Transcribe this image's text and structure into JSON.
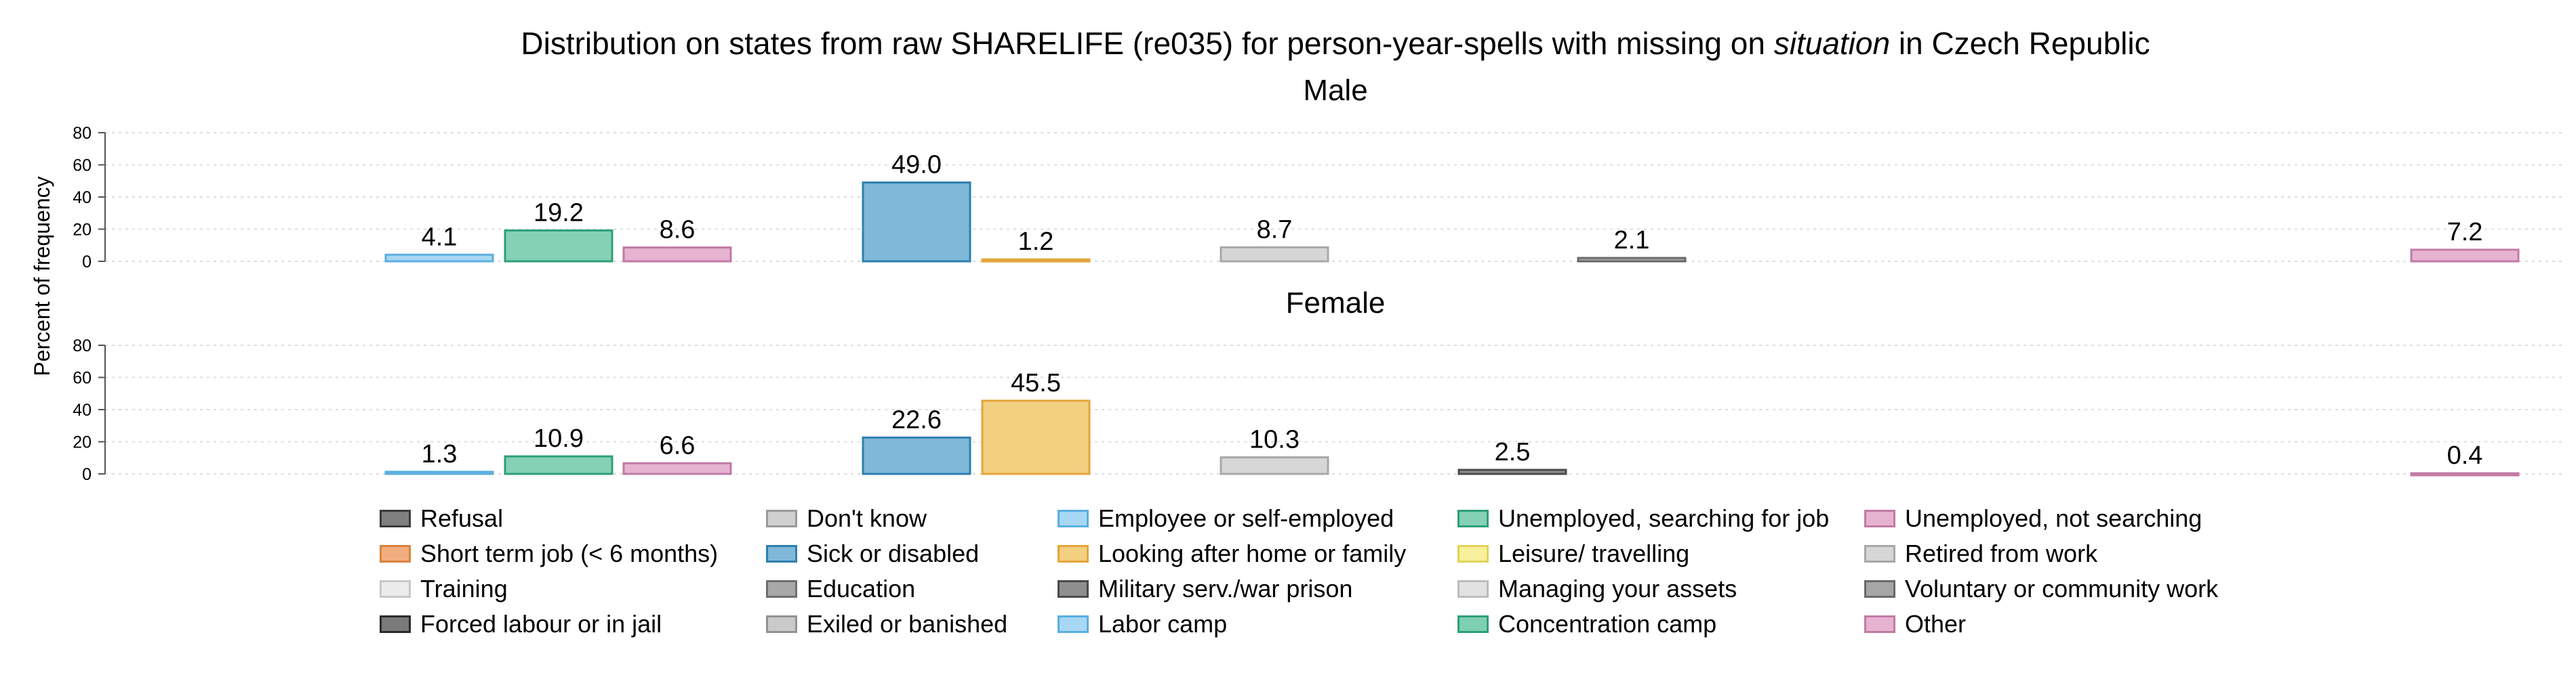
{
  "chart_data": {
    "type": "bar",
    "title": "Distribution on states from raw SHARELIFE (re035) for person-year-spells with missing on ",
    "title_italic": "situation",
    "title_suffix": " in Czech Republic",
    "ylabel": "Percent of frequency",
    "ylim": [
      0,
      80
    ],
    "yticks": [
      "0",
      "20",
      "40",
      "60",
      "80"
    ],
    "grid": true,
    "legend_position": "bottom",
    "categories": [
      "Refusal",
      "Short term job (< 6 months)",
      "Training",
      "Forced labour or in jail",
      "Don't know",
      "Sick or disabled",
      "Education",
      "Exiled or banished",
      "Employee or self-employed",
      "Looking after home or family",
      "Military serv./war prison",
      "Labor camp",
      "Unemployed, searching for job",
      "Leisure/ travelling",
      "Managing your assets",
      "Concentration camp",
      "Unemployed, not searching",
      "Retired from work",
      "Voluntary or community work",
      "Other"
    ],
    "panels": [
      {
        "name": "Male",
        "bars": [
          {
            "category": "Employee or self-employed",
            "value": 4.1,
            "label": "4.1"
          },
          {
            "category": "Unemployed, searching for job",
            "value": 19.2,
            "label": "19.2"
          },
          {
            "category": "Unemployed, not searching",
            "value": 8.6,
            "label": "8.6"
          },
          {
            "category": "Sick or disabled",
            "value": 49.0,
            "label": "49.0"
          },
          {
            "category": "Looking after home or family",
            "value": 1.2,
            "label": "1.2"
          },
          {
            "category": "Retired from work",
            "value": 8.7,
            "label": "8.7"
          },
          {
            "category": "Voluntary or community work",
            "value": 2.1,
            "label": "2.1"
          },
          {
            "category": "Other",
            "value": 7.2,
            "label": "7.2"
          }
        ]
      },
      {
        "name": "Female",
        "bars": [
          {
            "category": "Employee or self-employed",
            "value": 1.3,
            "label": "1.3"
          },
          {
            "category": "Unemployed, searching for job",
            "value": 10.9,
            "label": "10.9"
          },
          {
            "category": "Unemployed, not searching",
            "value": 6.6,
            "label": "6.6"
          },
          {
            "category": "Sick or disabled",
            "value": 22.6,
            "label": "22.6"
          },
          {
            "category": "Looking after home or family",
            "value": 45.5,
            "label": "45.5"
          },
          {
            "category": "Retired from work",
            "value": 10.3,
            "label": "10.3"
          },
          {
            "category": "Military serv./war prison",
            "value": 2.5,
            "label": "2.5"
          },
          {
            "category": "Other",
            "value": 0.4,
            "label": "0.4"
          }
        ]
      }
    ],
    "legend": [
      {
        "label": "Refusal",
        "fill": "#808080",
        "stroke": "#3a3a3a"
      },
      {
        "label": "Don't know",
        "fill": "#d0d0d0",
        "stroke": "#9a9a9a"
      },
      {
        "label": "Employee or self-employed",
        "fill": "#a7d7f3",
        "stroke": "#5aaee0"
      },
      {
        "label": "Unemployed, searching for job",
        "fill": "#85d1b5",
        "stroke": "#2e9f78"
      },
      {
        "label": "Unemployed, not searching",
        "fill": "#e6b3d1",
        "stroke": "#c27aa6"
      },
      {
        "label": "Short term job (< 6 months)",
        "fill": "#f2ad7f",
        "stroke": "#d9823f"
      },
      {
        "label": "Sick or disabled",
        "fill": "#7fb8d9",
        "stroke": "#2f7fb0"
      },
      {
        "label": "Looking after home or family",
        "fill": "#f3cf80",
        "stroke": "#e3a63a"
      },
      {
        "label": "Leisure/ travelling",
        "fill": "#f8f09a",
        "stroke": "#e0d45a"
      },
      {
        "label": "Retired from work",
        "fill": "#d6d6d6",
        "stroke": "#a8a8a8"
      },
      {
        "label": "Training",
        "fill": "#ececec",
        "stroke": "#c8c8c8"
      },
      {
        "label": "Education",
        "fill": "#a8a8a8",
        "stroke": "#6e6e6e"
      },
      {
        "label": "Military serv./war prison",
        "fill": "#8f8f8f",
        "stroke": "#4a4a4a"
      },
      {
        "label": "Managing your assets",
        "fill": "#e2e2e2",
        "stroke": "#bcbcbc"
      },
      {
        "label": "Voluntary or community work",
        "fill": "#a6a6a6",
        "stroke": "#6a6a6a"
      },
      {
        "label": "Forced labour or in jail",
        "fill": "#7a7a7a",
        "stroke": "#2a2a2a"
      },
      {
        "label": "Exiled or banished",
        "fill": "#cacaca",
        "stroke": "#929292"
      },
      {
        "label": "Labor camp",
        "fill": "#a7d7f3",
        "stroke": "#5aaee0"
      },
      {
        "label": "Concentration camp",
        "fill": "#7fd0b2",
        "stroke": "#2e9f78"
      },
      {
        "label": "Other",
        "fill": "#e6b3d1",
        "stroke": "#c27aa6"
      }
    ]
  }
}
